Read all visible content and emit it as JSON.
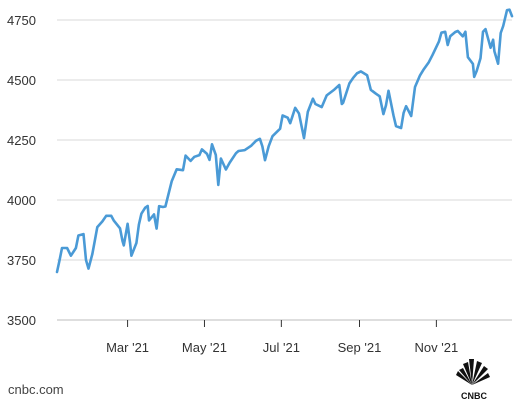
{
  "source_label": "cnbc.com",
  "logo": {
    "name": "cnbc-peacock-logo",
    "text": "CNBC"
  },
  "chart_data": {
    "type": "line",
    "title": "",
    "xlabel": "",
    "ylabel": "",
    "ylim": [
      3500,
      4800
    ],
    "y_ticks": [
      3500,
      3750,
      4000,
      4250,
      4500,
      4750
    ],
    "y_tick_labels": [
      "3500",
      "3750",
      "4000",
      "4250",
      "4500",
      "4750"
    ],
    "x_range": [
      "2021-01-04",
      "2021-12-31"
    ],
    "x_ticks": [
      "2021-03-01",
      "2021-05-01",
      "2021-07-01",
      "2021-09-01",
      "2021-11-01"
    ],
    "x_tick_labels": [
      "Mar '21",
      "May '21",
      "Jul '21",
      "Sep '21",
      "Nov '21"
    ],
    "grid": "horizontal",
    "line_color": "#4a9ad6",
    "series": [
      {
        "x": [
          "2021-01-04",
          "2021-01-06",
          "2021-01-08",
          "2021-01-12",
          "2021-01-15",
          "2021-01-19",
          "2021-01-21",
          "2021-01-25",
          "2021-01-27",
          "2021-01-29",
          "2021-02-01",
          "2021-02-03",
          "2021-02-05",
          "2021-02-09",
          "2021-02-12",
          "2021-02-16",
          "2021-02-18",
          "2021-02-23",
          "2021-02-25",
          "2021-02-26",
          "2021-03-01",
          "2021-03-03",
          "2021-03-04",
          "2021-03-08",
          "2021-03-10",
          "2021-03-12",
          "2021-03-15",
          "2021-03-17",
          "2021-03-18",
          "2021-03-22",
          "2021-03-24",
          "2021-03-26",
          "2021-03-29",
          "2021-03-31",
          "2021-04-05",
          "2021-04-09",
          "2021-04-14",
          "2021-04-16",
          "2021-04-20",
          "2021-04-23",
          "2021-04-27",
          "2021-04-29",
          "2021-05-03",
          "2021-05-05",
          "2021-05-07",
          "2021-05-10",
          "2021-05-12",
          "2021-05-14",
          "2021-05-18",
          "2021-05-21",
          "2021-05-26",
          "2021-05-28",
          "2021-06-02",
          "2021-06-07",
          "2021-06-11",
          "2021-06-14",
          "2021-06-16",
          "2021-06-18",
          "2021-06-21",
          "2021-06-24",
          "2021-06-30",
          "2021-07-02",
          "2021-07-06",
          "2021-07-08",
          "2021-07-12",
          "2021-07-15",
          "2021-07-19",
          "2021-07-22",
          "2021-07-26",
          "2021-07-28",
          "2021-08-02",
          "2021-08-06",
          "2021-08-12",
          "2021-08-16",
          "2021-08-18",
          "2021-08-19",
          "2021-08-24",
          "2021-08-27",
          "2021-08-30",
          "2021-09-02",
          "2021-09-07",
          "2021-09-10",
          "2021-09-14",
          "2021-09-17",
          "2021-09-20",
          "2021-09-22",
          "2021-09-24",
          "2021-09-28",
          "2021-09-30",
          "2021-10-04",
          "2021-10-06",
          "2021-10-08",
          "2021-10-12",
          "2021-10-15",
          "2021-10-19",
          "2021-10-22",
          "2021-10-26",
          "2021-10-29",
          "2021-11-03",
          "2021-11-05",
          "2021-11-08",
          "2021-11-10",
          "2021-11-12",
          "2021-11-16",
          "2021-11-18",
          "2021-11-22",
          "2021-11-24",
          "2021-11-26",
          "2021-11-30",
          "2021-12-01",
          "2021-12-03",
          "2021-12-06",
          "2021-12-08",
          "2021-12-10",
          "2021-12-14",
          "2021-12-16",
          "2021-12-17",
          "2021-12-20",
          "2021-12-22",
          "2021-12-24",
          "2021-12-27",
          "2021-12-29",
          "2021-12-31"
        ],
        "values": [
          3700,
          3748,
          3800,
          3800,
          3768,
          3800,
          3852,
          3858,
          3750,
          3714,
          3774,
          3830,
          3887,
          3911,
          3934,
          3934,
          3915,
          3882,
          3829,
          3811,
          3901,
          3820,
          3768,
          3821,
          3898,
          3943,
          3968,
          3975,
          3915,
          3940,
          3881,
          3974,
          3971,
          3973,
          4078,
          4128,
          4124,
          4185,
          4163,
          4180,
          4187,
          4211,
          4192,
          4167,
          4232,
          4188,
          4063,
          4173,
          4127,
          4156,
          4195,
          4204,
          4208,
          4226,
          4247,
          4255,
          4223,
          4166,
          4224,
          4266,
          4297,
          4352,
          4343,
          4320,
          4384,
          4360,
          4258,
          4367,
          4422,
          4400,
          4387,
          4436,
          4460,
          4479,
          4400,
          4405,
          4486,
          4509,
          4528,
          4536,
          4520,
          4459,
          4443,
          4432,
          4358,
          4395,
          4455,
          4352,
          4308,
          4300,
          4363,
          4391,
          4350,
          4471,
          4519,
          4545,
          4574,
          4605,
          4660,
          4697,
          4701,
          4646,
          4682,
          4700,
          4704,
          4682,
          4701,
          4595,
          4567,
          4513,
          4538,
          4591,
          4701,
          4712,
          4634,
          4668,
          4620,
          4568,
          4696,
          4725,
          4791,
          4793,
          4766
        ]
      }
    ]
  }
}
